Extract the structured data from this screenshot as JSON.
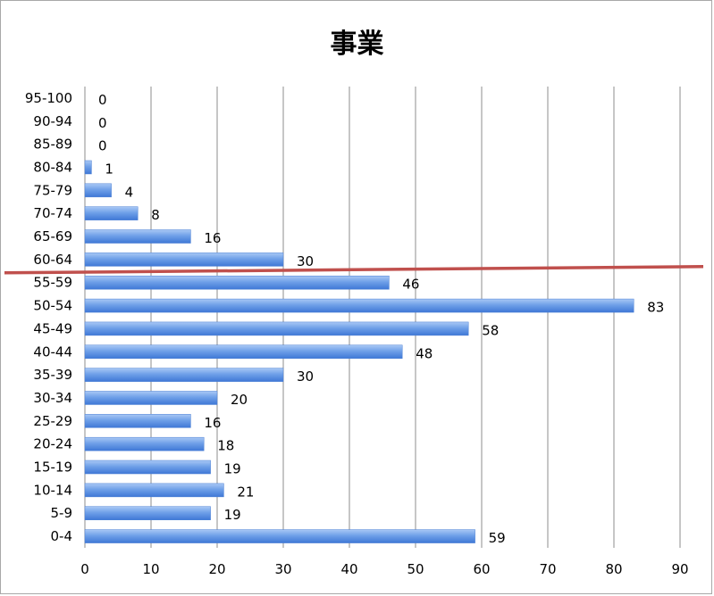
{
  "chart_data": {
    "type": "bar",
    "orientation": "horizontal",
    "title": "事業",
    "categories": [
      "0-4",
      "5-9",
      "10-14",
      "15-19",
      "20-24",
      "25-29",
      "30-34",
      "35-39",
      "40-44",
      "45-49",
      "50-54",
      "55-59",
      "60-64",
      "65-69",
      "70-74",
      "75-79",
      "80-84",
      "85-89",
      "90-94",
      "95-100"
    ],
    "values": [
      59,
      19,
      21,
      19,
      18,
      16,
      20,
      30,
      48,
      58,
      83,
      46,
      30,
      16,
      8,
      4,
      1,
      0,
      0,
      0
    ],
    "xlim": [
      0,
      90
    ],
    "xticks": [
      "0",
      "10",
      "20",
      "30",
      "40",
      "50",
      "60",
      "70",
      "80",
      "90"
    ],
    "grid": "vertical",
    "data_labels": true,
    "bar_color": "#6fa0e8",
    "annotation": {
      "type": "line",
      "color": "#c0504d",
      "between_categories": [
        "60-64",
        "55-59"
      ]
    }
  }
}
